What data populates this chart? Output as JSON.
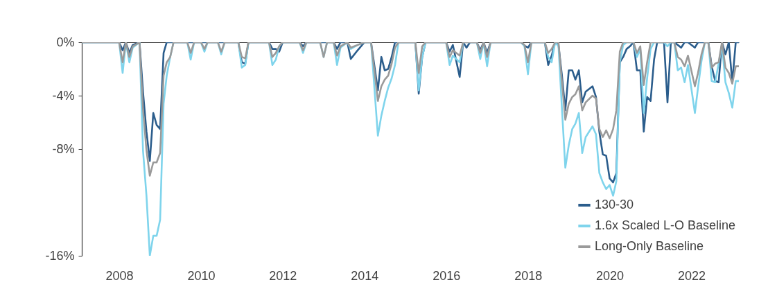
{
  "chart_data": {
    "type": "line",
    "x": [
      "2007-02",
      "2007-12",
      "2008-01",
      "2008-02",
      "2008-03",
      "2008-04",
      "2008-05",
      "2008-07",
      "2008-08",
      "2008-09",
      "2008-10",
      "2008-11",
      "2008-12",
      "2009-01",
      "2009-02",
      "2009-03",
      "2009-04",
      "2009-05",
      "2009-09",
      "2009-10",
      "2009-11",
      "2010-01",
      "2010-02",
      "2010-03",
      "2010-06",
      "2010-07",
      "2010-08",
      "2010-12",
      "2011-01",
      "2011-02",
      "2011-03",
      "2011-09",
      "2011-10",
      "2011-11",
      "2011-12",
      "2012-01",
      "2012-06",
      "2012-07",
      "2012-08",
      "2012-12",
      "2013-01",
      "2013-02",
      "2013-04",
      "2013-05",
      "2013-06",
      "2013-08",
      "2013-09",
      "2013-11",
      "2014-01",
      "2014-03",
      "2014-05",
      "2014-06",
      "2014-07",
      "2014-08",
      "2014-09",
      "2014-10",
      "2014-11",
      "2015-04",
      "2015-05",
      "2015-06",
      "2015-07",
      "2016-01",
      "2016-02",
      "2016-03",
      "2016-05",
      "2016-06",
      "2016-07",
      "2016-08",
      "2016-10",
      "2016-11",
      "2016-12",
      "2017-01",
      "2017-02",
      "2017-11",
      "2017-12",
      "2018-01",
      "2018-02",
      "2018-06",
      "2018-07",
      "2018-08",
      "2018-09",
      "2018-10",
      "2018-11",
      "2018-12",
      "2019-01",
      "2019-02",
      "2019-03",
      "2019-04",
      "2019-05",
      "2019-06",
      "2019-08",
      "2019-09",
      "2019-10",
      "2019-11",
      "2019-12",
      "2020-01",
      "2020-02",
      "2020-03",
      "2020-04",
      "2020-05",
      "2020-06",
      "2020-07",
      "2020-08",
      "2020-09",
      "2020-10",
      "2020-11",
      "2020-12",
      "2021-01",
      "2021-02",
      "2021-03",
      "2021-05",
      "2021-06",
      "2021-07",
      "2021-08",
      "2021-09",
      "2021-10",
      "2021-11",
      "2021-12",
      "2022-02",
      "2022-03",
      "2022-04",
      "2022-05",
      "2022-06",
      "2022-07",
      "2022-08",
      "2022-09",
      "2022-10",
      "2022-11",
      "2022-12",
      "2023-01",
      "2023-02",
      "2023-03"
    ],
    "series": [
      {
        "name": "130-30",
        "color": "#2b5d8c",
        "values": [
          0,
          0,
          0,
          -0.6,
          0,
          -0.8,
          -0.2,
          0,
          -3.7,
          -6.7,
          -8.9,
          -5.3,
          -6.2,
          -6.5,
          -0.8,
          0,
          0,
          0,
          0,
          0,
          0,
          0,
          0,
          0,
          0,
          0,
          0,
          0,
          -1.5,
          -1.6,
          0,
          0,
          -0.5,
          -0.5,
          -0.7,
          0,
          0,
          -0.3,
          0,
          0,
          0,
          0,
          0,
          -0.5,
          0,
          0,
          -1.25,
          -0.6,
          0,
          0,
          -3.6,
          -1.1,
          -2.1,
          -2.0,
          -1.1,
          0,
          0,
          0,
          -3.85,
          -1.1,
          0,
          0,
          -0.7,
          -0.2,
          -2.6,
          0,
          -0.4,
          0,
          0,
          -0.6,
          0,
          -0.8,
          0,
          0,
          -0.25,
          -0.4,
          0,
          0,
          -1.7,
          -1.0,
          0,
          -0.2,
          -2.5,
          -5.1,
          -2.1,
          -2.1,
          -2.8,
          -2.1,
          -4.5,
          -3.7,
          -3.3,
          -4.1,
          -6.7,
          -8.4,
          -8.5,
          -10.2,
          -10.5,
          -9.8,
          -1.5,
          -1.1,
          -0.5,
          -0.3,
          0,
          -2.1,
          -2.1,
          -6.7,
          -4.1,
          -4.4,
          -1.3,
          0,
          0,
          -4.5,
          0,
          0,
          -0.2,
          -0.4,
          0,
          0,
          -0.4,
          0,
          0,
          0,
          0,
          -1.8,
          -2.9,
          -3.0,
          0,
          -0.9,
          0,
          -3.0,
          0,
          0
        ]
      },
      {
        "name": "1.6x Scaled L-O Baseline",
        "color": "#7fd4ec",
        "values": [
          0,
          0,
          0,
          -2.3,
          0,
          -1.5,
          -0.4,
          0,
          -8.1,
          -11.5,
          -16.0,
          -14.5,
          -14.5,
          -13.3,
          -4.6,
          -2.5,
          -1.1,
          0,
          0,
          -1.3,
          0,
          0,
          -0.7,
          0,
          0,
          -0.9,
          0,
          0,
          -1.9,
          -1.7,
          0,
          0,
          -1.7,
          -1.3,
          -0.3,
          0,
          0,
          -0.8,
          0,
          0,
          -1.1,
          0,
          0,
          -1.7,
          -0.4,
          0,
          -0.5,
          -0.2,
          0,
          0,
          -7.0,
          -5.5,
          -4.4,
          -3.4,
          -2.7,
          -1.7,
          0,
          0,
          -3.6,
          -1.1,
          0,
          0,
          -1.7,
          -1.0,
          -1.5,
          0,
          0,
          0,
          0,
          -1.25,
          0,
          -1.8,
          0,
          0,
          -0.3,
          -2.4,
          0,
          0,
          -1.1,
          -1.5,
          0,
          -0.3,
          -5.0,
          -9.4,
          -7.7,
          -6.5,
          -6.1,
          -5.3,
          -8.3,
          -7.1,
          -6.3,
          -6.9,
          -9.8,
          -10.5,
          -11.0,
          -10.7,
          -11.5,
          -10.4,
          -1.5,
          -0.2,
          0,
          0,
          0,
          -1.1,
          -0.5,
          -5.3,
          -2.7,
          -0.5,
          0,
          0,
          0,
          -0.3,
          0,
          0,
          -2.1,
          -1.9,
          -3.0,
          -1.7,
          -5.3,
          -3.4,
          -1.4,
          0,
          0,
          -2.9,
          -3.0,
          -1.6,
          -0.2,
          -3.0,
          -3.8,
          -4.9,
          -2.9,
          -2.9
        ]
      },
      {
        "name": "Long-Only Baseline",
        "color": "#9a9a9a",
        "values": [
          0,
          0,
          0,
          -1.5,
          0,
          -1.1,
          -0.3,
          0,
          -5.0,
          -8.1,
          -10.0,
          -9.0,
          -9.0,
          -8.3,
          -2.5,
          -1.5,
          -1.1,
          0,
          0,
          -0.8,
          0,
          0,
          -0.5,
          0,
          0,
          -0.7,
          0,
          0,
          -1.1,
          -1.2,
          0,
          0,
          -1.1,
          -0.8,
          -0.3,
          0,
          0,
          -0.6,
          0,
          0,
          -1.1,
          0,
          0,
          -1.0,
          -0.3,
          0,
          -0.4,
          -0.2,
          0,
          0,
          -4.4,
          -3.3,
          -2.8,
          -2.5,
          -1.6,
          -0.4,
          0,
          0,
          -2.3,
          -0.3,
          0,
          0,
          -1.1,
          -0.6,
          -1.0,
          0,
          0,
          0,
          0,
          -0.8,
          0,
          -1.1,
          0,
          0,
          -0.2,
          -1.5,
          0,
          0,
          -0.8,
          -0.5,
          0,
          0,
          -3.0,
          -5.8,
          -4.6,
          -4.1,
          -3.9,
          -3.3,
          -5.1,
          -4.5,
          -4.0,
          -4.2,
          -6.5,
          -7.1,
          -6.6,
          -7.2,
          -6.5,
          -5.1,
          -0.7,
          0,
          0,
          0,
          0,
          -0.8,
          -0.3,
          -3.2,
          -1.5,
          0,
          0,
          0,
          0,
          0,
          0,
          0,
          -1.1,
          -1.3,
          -1.8,
          -1.0,
          -3.3,
          -2.3,
          -0.9,
          0,
          0,
          -1.9,
          -1.6,
          -1.5,
          0,
          -1.9,
          -2.3,
          -3.1,
          -1.8,
          -1.8
        ]
      }
    ],
    "xlim": [
      "2007-02",
      "2023-03"
    ],
    "xticks": [
      "2008",
      "2010",
      "2012",
      "2014",
      "2016",
      "2018",
      "2020",
      "2022"
    ],
    "ylim": [
      -16,
      0
    ],
    "yticks": [
      {
        "value": 0,
        "label": "0%"
      },
      {
        "value": -4,
        "label": "-4%"
      },
      {
        "value": -8,
        "label": "-8%"
      },
      {
        "value": -16,
        "label": "-16%"
      }
    ],
    "legend": "bottom right",
    "grid": false
  }
}
